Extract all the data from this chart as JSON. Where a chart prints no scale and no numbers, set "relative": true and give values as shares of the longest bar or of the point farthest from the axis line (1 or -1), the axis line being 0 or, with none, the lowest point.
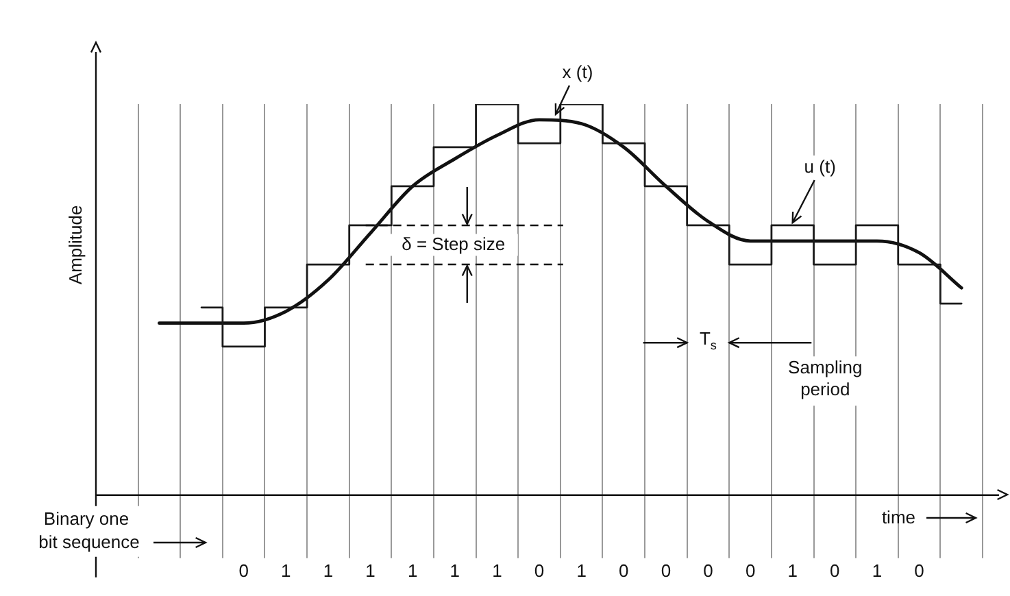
{
  "chart_data": {
    "type": "step",
    "relative": true,
    "ylabel": "Amplitude",
    "xlabel": "time",
    "categories": [
      null,
      null,
      null,
      "0",
      "1",
      "1",
      "1",
      "1",
      "1",
      "1",
      "0",
      "1",
      "0",
      "0",
      "0",
      "0",
      "1",
      "0",
      "1",
      "0",
      null
    ],
    "grid": "x",
    "legend": false,
    "marker": "none",
    "series": [
      {
        "color": "#1a1a1a",
        "values": [
          null,
          null,
          0.48,
          0.38,
          0.48,
          0.59,
          0.69,
          0.79,
          0.89,
          1.0,
          0.9,
          1.0,
          0.9,
          0.79,
          0.69,
          0.59,
          0.69,
          0.59,
          0.69,
          0.59,
          0.49
        ]
      },
      {
        "type": "line",
        "color": "#111111",
        "values": [
          null,
          0.44,
          0.44,
          0.44,
          0.47,
          0.55,
          0.67,
          0.79,
          0.86,
          0.92,
          0.96,
          0.95,
          0.89,
          0.79,
          0.7,
          0.65,
          0.65,
          0.65,
          0.65,
          0.62,
          0.53
        ]
      }
    ],
    "ref_lines": [
      {
        "axis": "y",
        "value": 0.69,
        "line_style": "dashed"
      },
      {
        "axis": "y",
        "value": 0.59,
        "line_style": "dashed"
      }
    ],
    "annotations": [
      "x (t)",
      "u (t)",
      "δ = Step size",
      "T$_{s}$",
      "Sampling period",
      "Binary one bit sequence"
    ]
  }
}
